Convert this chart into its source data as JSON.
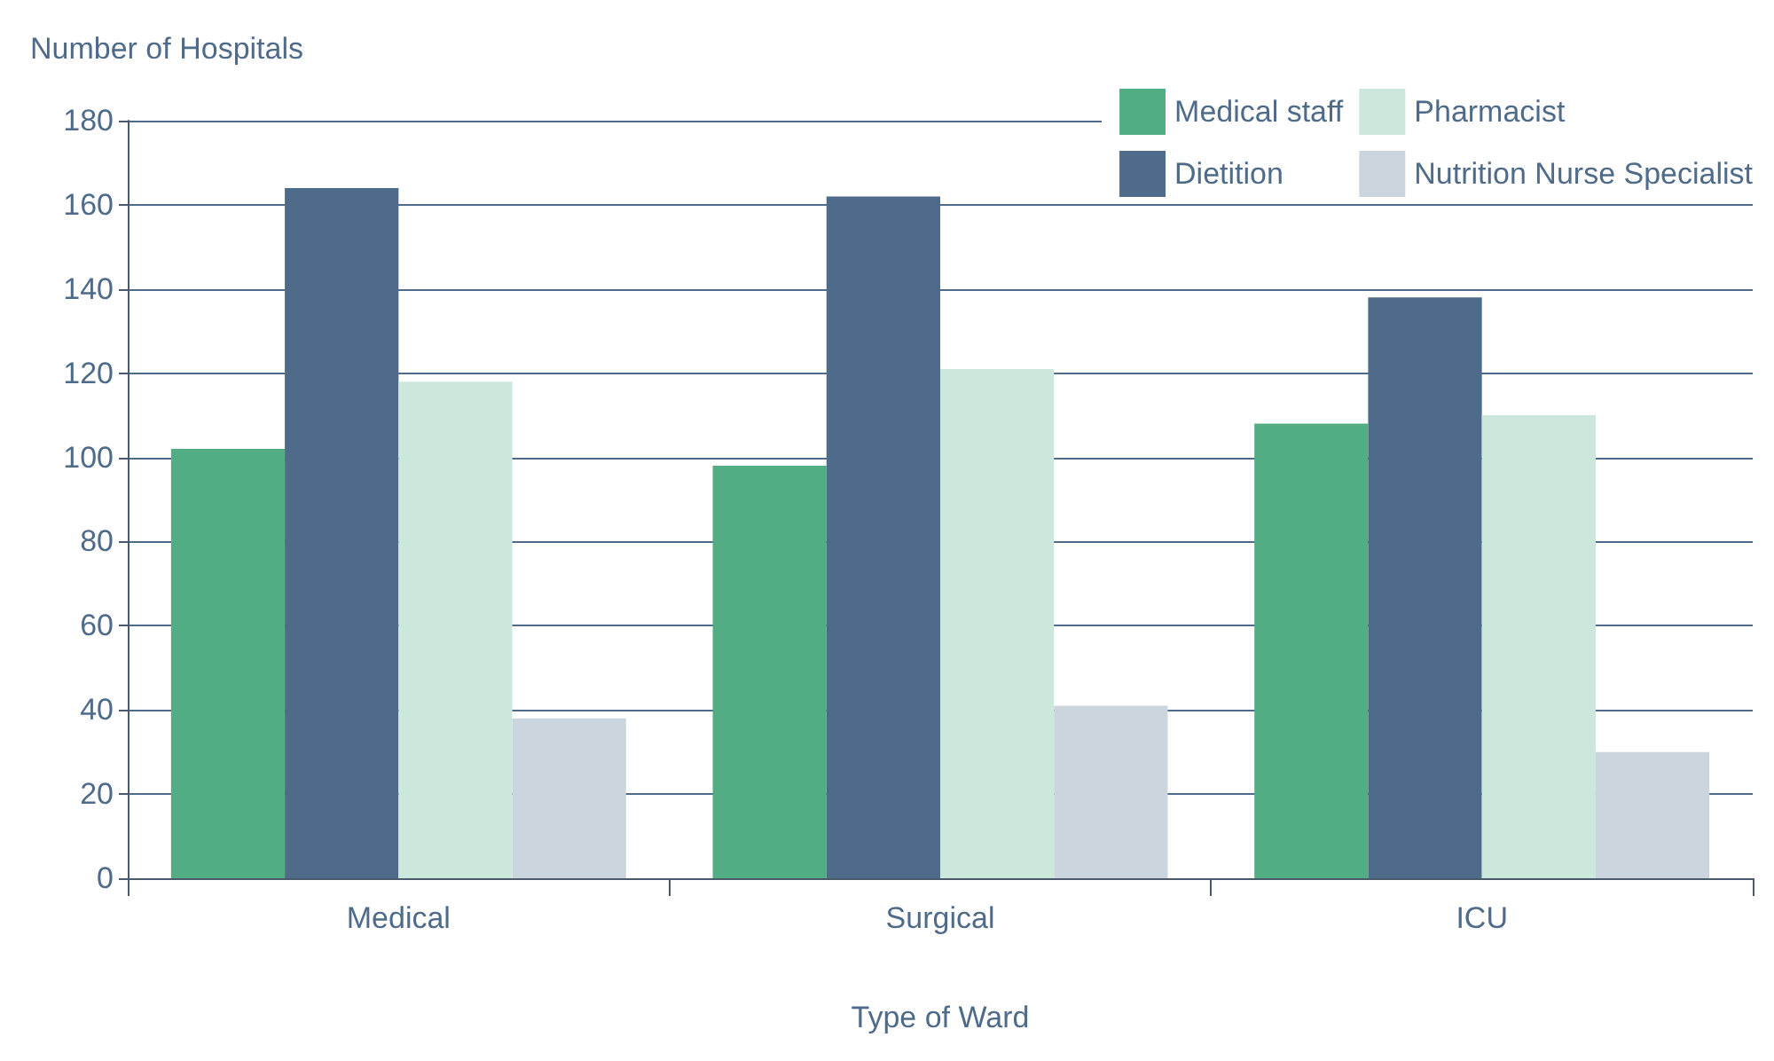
{
  "chart_data": {
    "type": "bar",
    "xlabel": "Type of Ward",
    "ylabel": "Number of Hospitals",
    "categories": [
      "Medical",
      "Surgical",
      "ICU"
    ],
    "series": [
      {
        "name": "Medical staff",
        "color": "#53ad84",
        "values": [
          102,
          98,
          108
        ]
      },
      {
        "name": "Dietition",
        "color": "#4f6b8a",
        "values": [
          164,
          162,
          138
        ]
      },
      {
        "name": "Pharmacist",
        "color": "#cce7db",
        "values": [
          118,
          121,
          110
        ]
      },
      {
        "name": "Nutrition Nurse Specialist",
        "color": "#cbd5de",
        "values": [
          38,
          41,
          30
        ]
      }
    ],
    "ylim": [
      0,
      180
    ],
    "yticks": [
      0,
      20,
      40,
      60,
      80,
      100,
      120,
      140,
      160,
      180
    ],
    "grid": "y",
    "legend": "top right"
  }
}
